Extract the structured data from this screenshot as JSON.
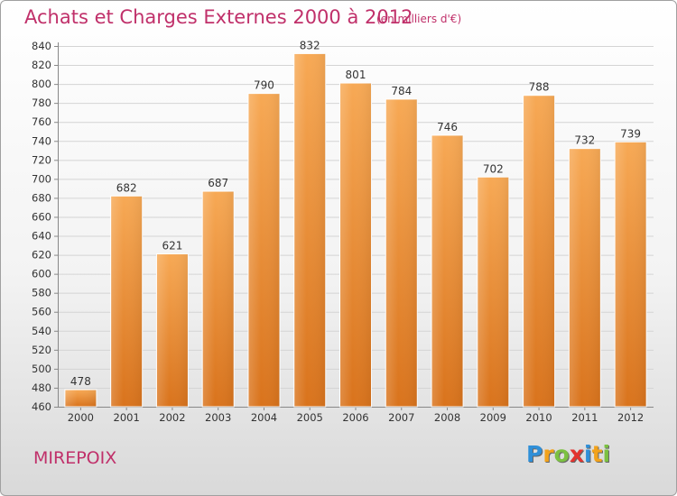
{
  "chart_data": {
    "type": "bar",
    "title": "Achats et Charges Externes 2000 à 2012",
    "subtitle": "(en milliers d'€)",
    "categories": [
      "2000",
      "2001",
      "2002",
      "2003",
      "2004",
      "2005",
      "2006",
      "2007",
      "2008",
      "2009",
      "2010",
      "2011",
      "2012"
    ],
    "values": [
      478,
      682,
      621,
      687,
      790,
      832,
      801,
      784,
      746,
      702,
      788,
      732,
      739
    ],
    "ylim": [
      460,
      840
    ],
    "ytick_step": 20,
    "grid": true,
    "bar_color": "#f0902e",
    "title_color": "#c0306a"
  },
  "footer": {
    "place": "MIREPOIX",
    "logo_letters": [
      {
        "ch": "P",
        "color": "#2f8fd8"
      },
      {
        "ch": "r",
        "color": "#f2a21b"
      },
      {
        "ch": "o",
        "color": "#7cc142"
      },
      {
        "ch": "x",
        "color": "#e3342f"
      },
      {
        "ch": "i",
        "color": "#2f8fd8"
      },
      {
        "ch": "t",
        "color": "#f2a21b"
      },
      {
        "ch": "i",
        "color": "#7cc142"
      }
    ]
  }
}
